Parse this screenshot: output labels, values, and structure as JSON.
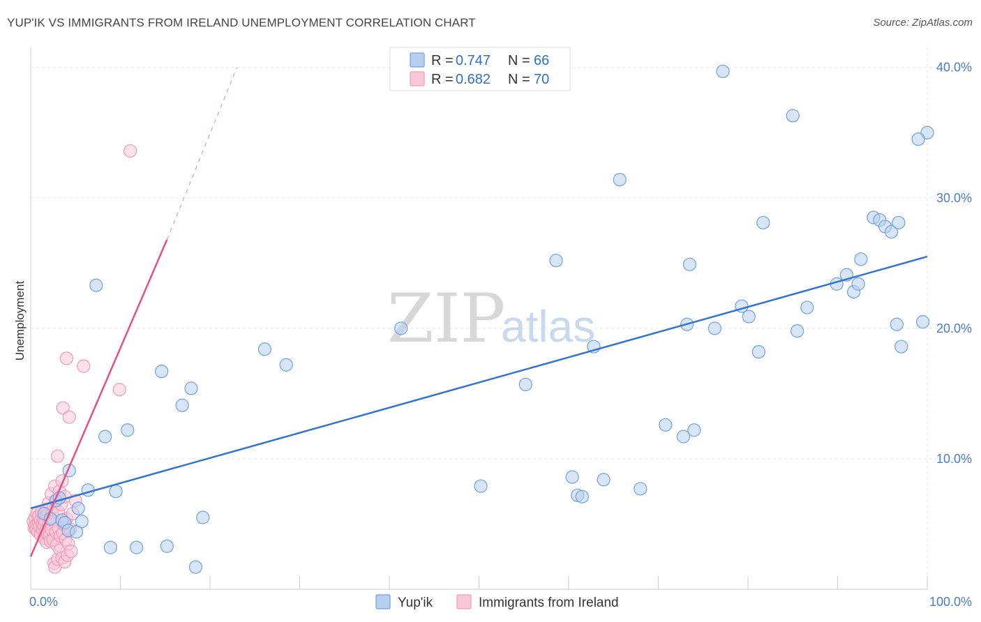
{
  "chart_data": {
    "type": "scatter",
    "title": "YUP'IK VS IMMIGRANTS FROM IRELAND UNEMPLOYMENT CORRELATION CHART",
    "source": "Source: ZipAtlas.com",
    "ylabel": "Unemployment",
    "xlabel": "",
    "xlim": [
      0,
      100
    ],
    "ylim": [
      0,
      41
    ],
    "x_tick_labels": [
      "0.0%",
      "100.0%"
    ],
    "y_ticks": [
      10,
      20,
      30,
      40
    ],
    "y_tick_labels": [
      "10.0%",
      "20.0%",
      "30.0%",
      "40.0%"
    ],
    "watermark": {
      "zip": "ZIP",
      "atlas": "atlas"
    },
    "legend": [
      {
        "r_label": "R =",
        "r_value": "0.747",
        "n_label": "N =",
        "n_value": "66"
      },
      {
        "r_label": "R =",
        "r_value": "0.682",
        "n_label": "N =",
        "n_value": "70"
      }
    ],
    "series": [
      {
        "name": "Yup'ik",
        "color": "#6fa0e0",
        "fill": "#b8d0f0",
        "trend_color": "#3174cf",
        "trend": {
          "x0": 0,
          "y0": 6.2,
          "x1": 100,
          "y1": 25.5
        },
        "points": [
          [
            1.5,
            5.8
          ],
          [
            2.2,
            5.4
          ],
          [
            2.8,
            6.8
          ],
          [
            3.2,
            7.0
          ],
          [
            3.5,
            5.3
          ],
          [
            3.8,
            5.1
          ],
          [
            4.2,
            4.5
          ],
          [
            4.3,
            9.1
          ],
          [
            5.1,
            4.4
          ],
          [
            5.3,
            6.2
          ],
          [
            5.7,
            5.2
          ],
          [
            6.4,
            7.6
          ],
          [
            7.3,
            23.3
          ],
          [
            8.3,
            11.7
          ],
          [
            8.9,
            3.2
          ],
          [
            9.5,
            7.5
          ],
          [
            10.8,
            12.2
          ],
          [
            11.8,
            3.2
          ],
          [
            14.6,
            16.7
          ],
          [
            15.2,
            3.3
          ],
          [
            16.9,
            14.1
          ],
          [
            17.9,
            15.4
          ],
          [
            18.4,
            1.7
          ],
          [
            19.2,
            5.5
          ],
          [
            26.1,
            18.4
          ],
          [
            28.5,
            17.2
          ],
          [
            41.3,
            20.0
          ],
          [
            50.2,
            7.9
          ],
          [
            55.2,
            15.7
          ],
          [
            58.6,
            25.2
          ],
          [
            60.4,
            8.6
          ],
          [
            61.0,
            7.2
          ],
          [
            61.5,
            7.1
          ],
          [
            62.8,
            18.6
          ],
          [
            63.9,
            8.4
          ],
          [
            65.7,
            31.4
          ],
          [
            68.0,
            7.7
          ],
          [
            70.8,
            12.6
          ],
          [
            72.8,
            11.7
          ],
          [
            73.2,
            20.3
          ],
          [
            73.5,
            24.9
          ],
          [
            74.0,
            12.2
          ],
          [
            76.3,
            20.0
          ],
          [
            77.2,
            39.7
          ],
          [
            79.3,
            21.7
          ],
          [
            80.1,
            20.9
          ],
          [
            81.2,
            18.2
          ],
          [
            81.7,
            28.1
          ],
          [
            85.0,
            36.3
          ],
          [
            85.5,
            19.8
          ],
          [
            86.6,
            21.6
          ],
          [
            89.9,
            23.4
          ],
          [
            91.0,
            24.1
          ],
          [
            91.8,
            22.8
          ],
          [
            92.3,
            23.4
          ],
          [
            92.6,
            25.3
          ],
          [
            94.0,
            28.5
          ],
          [
            94.7,
            28.3
          ],
          [
            95.3,
            27.8
          ],
          [
            96.0,
            27.4
          ],
          [
            96.6,
            20.3
          ],
          [
            96.8,
            28.1
          ],
          [
            97.1,
            18.6
          ],
          [
            99.5,
            20.5
          ],
          [
            100.0,
            35.0
          ],
          [
            99.0,
            34.5
          ]
        ]
      },
      {
        "name": "Immigrants from Ireland",
        "color": "#f09ab8",
        "fill": "#f8c8d8",
        "trend_color": "#e3527f",
        "trend": {
          "x0": 0,
          "y0": 2.5,
          "x1": 15.2,
          "y1": 26.8
        },
        "trend_dashed": {
          "x0": 15.2,
          "y0": 26.8,
          "x1": 23.0,
          "y1": 40.0
        },
        "points": [
          [
            0.3,
            5.2
          ],
          [
            0.4,
            4.7
          ],
          [
            0.5,
            4.9
          ],
          [
            0.5,
            5.5
          ],
          [
            0.6,
            4.6
          ],
          [
            0.7,
            5.0
          ],
          [
            0.7,
            5.8
          ],
          [
            0.8,
            4.4
          ],
          [
            0.9,
            5.1
          ],
          [
            0.9,
            5.6
          ],
          [
            1.0,
            4.8
          ],
          [
            1.1,
            5.3
          ],
          [
            1.1,
            4.2
          ],
          [
            1.2,
            5.9
          ],
          [
            1.3,
            4.6
          ],
          [
            1.3,
            5.0
          ],
          [
            1.4,
            5.4
          ],
          [
            1.5,
            4.9
          ],
          [
            1.5,
            3.9
          ],
          [
            1.6,
            5.2
          ],
          [
            1.7,
            6.1
          ],
          [
            1.7,
            4.5
          ],
          [
            1.8,
            5.7
          ],
          [
            1.8,
            3.6
          ],
          [
            1.9,
            4.2
          ],
          [
            2.0,
            5.0
          ],
          [
            2.0,
            6.6
          ],
          [
            2.1,
            4.1
          ],
          [
            2.2,
            5.5
          ],
          [
            2.2,
            3.7
          ],
          [
            2.3,
            7.3
          ],
          [
            2.3,
            4.6
          ],
          [
            2.4,
            5.9
          ],
          [
            2.5,
            3.8
          ],
          [
            2.5,
            6.3
          ],
          [
            2.6,
            2.0
          ],
          [
            2.6,
            5.2
          ],
          [
            2.7,
            7.9
          ],
          [
            2.7,
            1.7
          ],
          [
            2.8,
            4.4
          ],
          [
            2.9,
            6.8
          ],
          [
            2.9,
            3.4
          ],
          [
            3.0,
            10.2
          ],
          [
            3.0,
            2.3
          ],
          [
            3.1,
            4.7
          ],
          [
            3.1,
            5.9
          ],
          [
            3.2,
            7.5
          ],
          [
            3.3,
            3.0
          ],
          [
            3.3,
            4.1
          ],
          [
            3.4,
            6.5
          ],
          [
            3.5,
            8.3
          ],
          [
            3.5,
            2.4
          ],
          [
            3.6,
            13.9
          ],
          [
            3.6,
            4.3
          ],
          [
            3.7,
            5.0
          ],
          [
            3.8,
            7.1
          ],
          [
            3.8,
            2.1
          ],
          [
            3.9,
            3.8
          ],
          [
            4.0,
            5.4
          ],
          [
            4.0,
            17.7
          ],
          [
            4.1,
            2.6
          ],
          [
            4.2,
            3.5
          ],
          [
            4.3,
            13.2
          ],
          [
            4.4,
            4.6
          ],
          [
            4.5,
            2.9
          ],
          [
            4.7,
            5.8
          ],
          [
            5.0,
            6.8
          ],
          [
            5.9,
            17.1
          ],
          [
            9.9,
            15.3
          ],
          [
            11.1,
            33.6
          ]
        ]
      }
    ]
  }
}
